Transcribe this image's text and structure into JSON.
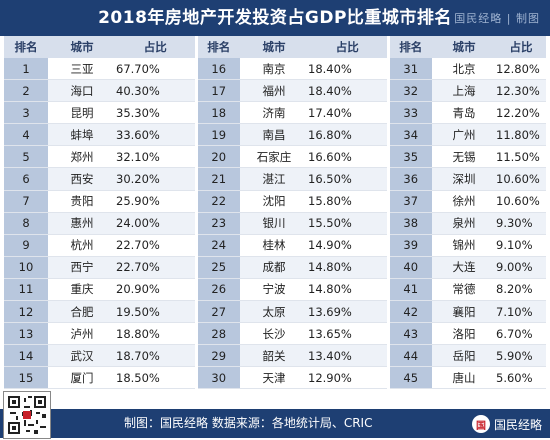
{
  "title": "2018年房地产开发投资占GDP比重城市排名",
  "brand": "国民经略 | 制图",
  "headers": [
    "排名",
    "城市",
    "占比"
  ],
  "rows": [
    [
      [
        "1",
        "三亚",
        "67.70%"
      ],
      [
        "16",
        "南京",
        "18.40%"
      ],
      [
        "31",
        "北京",
        "12.80%"
      ]
    ],
    [
      [
        "2",
        "海口",
        "40.30%"
      ],
      [
        "17",
        "福州",
        "18.40%"
      ],
      [
        "32",
        "上海",
        "12.30%"
      ]
    ],
    [
      [
        "3",
        "昆明",
        "35.30%"
      ],
      [
        "18",
        "济南",
        "17.40%"
      ],
      [
        "33",
        "青岛",
        "12.20%"
      ]
    ],
    [
      [
        "4",
        "蚌埠",
        "33.60%"
      ],
      [
        "19",
        "南昌",
        "16.80%"
      ],
      [
        "34",
        "广州",
        "11.80%"
      ]
    ],
    [
      [
        "5",
        "郑州",
        "32.10%"
      ],
      [
        "20",
        "石家庄",
        "16.60%"
      ],
      [
        "35",
        "无锡",
        "11.50%"
      ]
    ],
    [
      [
        "6",
        "西安",
        "30.20%"
      ],
      [
        "21",
        "湛江",
        "16.50%"
      ],
      [
        "36",
        "深圳",
        "10.60%"
      ]
    ],
    [
      [
        "7",
        "贵阳",
        "25.90%"
      ],
      [
        "22",
        "沈阳",
        "15.80%"
      ],
      [
        "37",
        "徐州",
        "10.60%"
      ]
    ],
    [
      [
        "8",
        "惠州",
        "24.00%"
      ],
      [
        "23",
        "银川",
        "15.50%"
      ],
      [
        "38",
        "泉州",
        "9.30%"
      ]
    ],
    [
      [
        "9",
        "杭州",
        "22.70%"
      ],
      [
        "24",
        "桂林",
        "14.90%"
      ],
      [
        "39",
        "锦州",
        "9.10%"
      ]
    ],
    [
      [
        "10",
        "西宁",
        "22.70%"
      ],
      [
        "25",
        "成都",
        "14.80%"
      ],
      [
        "40",
        "大连",
        "9.00%"
      ]
    ],
    [
      [
        "11",
        "重庆",
        "20.90%"
      ],
      [
        "26",
        "宁波",
        "14.80%"
      ],
      [
        "41",
        "常德",
        "8.20%"
      ]
    ],
    [
      [
        "12",
        "合肥",
        "19.50%"
      ],
      [
        "27",
        "太原",
        "13.69%"
      ],
      [
        "42",
        "襄阳",
        "7.10%"
      ]
    ],
    [
      [
        "13",
        "泸州",
        "18.80%"
      ],
      [
        "28",
        "长沙",
        "13.65%"
      ],
      [
        "43",
        "洛阳",
        "6.70%"
      ]
    ],
    [
      [
        "14",
        "武汉",
        "18.70%"
      ],
      [
        "29",
        "韶关",
        "13.40%"
      ],
      [
        "44",
        "岳阳",
        "5.90%"
      ]
    ],
    [
      [
        "15",
        "厦门",
        "18.50%"
      ],
      [
        "30",
        "天津",
        "12.90%"
      ],
      [
        "45",
        "唐山",
        "5.60%"
      ]
    ]
  ],
  "footer": {
    "source": "制图：国民经略    数据来源：各地统计局、CRIC"
  },
  "logo": {
    "mark": "国",
    "text": "国民经略"
  },
  "colors": {
    "header": "#1e3f73",
    "rank_cell": "#b8c7dd",
    "alt_row": "#eef2f8"
  }
}
